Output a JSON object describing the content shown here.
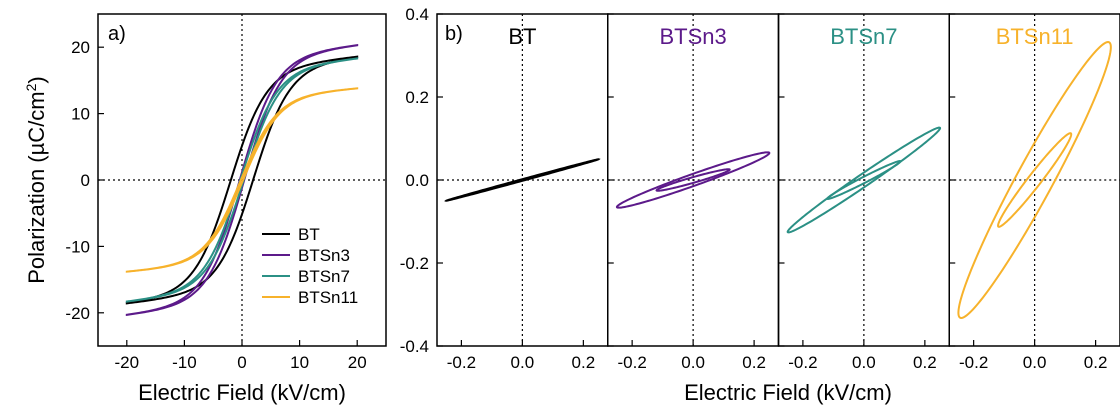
{
  "colors": {
    "BT": "#000000",
    "BTSn3": "#5c1a8a",
    "BTSn7": "#2b9085",
    "BTSn11": "#f7b22b"
  },
  "chart_data": [
    {
      "type": "line",
      "panel_label": "a)",
      "xlabel": "Electric Field (kV/cm)",
      "ylabel": "Polarization (µC/cm²)",
      "xlim": [
        -25,
        25
      ],
      "ylim": [
        -25,
        25
      ],
      "xticks": [
        -20,
        -10,
        0,
        10,
        20
      ],
      "yticks": [
        -20,
        -10,
        0,
        10,
        20
      ],
      "xtick_labels": [
        "-20",
        "-10",
        "0",
        "10",
        "20"
      ],
      "ytick_labels": [
        "-20",
        "-10",
        "0",
        "10",
        "20"
      ],
      "legend": {
        "position": "bottom-right",
        "entries": [
          "BT",
          "BTSn3",
          "BTSn7",
          "BTSn11"
        ]
      },
      "series": [
        {
          "name": "BT",
          "Emax": 20,
          "Psat": 18.5,
          "Ec": 2.0,
          "Pr": 7.0,
          "type": "hysteresis"
        },
        {
          "name": "BTSn3",
          "Emax": 20,
          "Psat": 20.3,
          "Ec": 0.4,
          "Pr": 12.0,
          "type": "hysteresis"
        },
        {
          "name": "BTSn7",
          "Emax": 20,
          "Psat": 18.3,
          "Ec": 0.3,
          "Pr": 8.0,
          "type": "hysteresis"
        },
        {
          "name": "BTSn11",
          "Emax": 20,
          "Psat": 13.8,
          "Ec": 0.2,
          "Pr": 4.0,
          "type": "hysteresis"
        }
      ]
    },
    {
      "type": "line",
      "panel_label": "b)",
      "xlabel": "Electric Field (kV/cm)",
      "ylim": [
        -0.4,
        0.4
      ],
      "yticks": [
        -0.4,
        -0.2,
        0.0,
        0.2,
        0.4
      ],
      "ytick_labels": [
        "-0.4",
        "-0.2",
        "0.0",
        "0.2",
        "0.4"
      ],
      "xlim": [
        -0.28,
        0.28
      ],
      "xticks": [
        -0.2,
        0.0,
        0.2
      ],
      "xtick_labels": [
        "-0.2",
        "0.0",
        "0.2"
      ],
      "subpanels": [
        {
          "title": "BT",
          "loops": [
            {
              "Emax": 0.25,
              "Pmax": 0.05,
              "Pr": 0.002
            }
          ]
        },
        {
          "title": "BTSn3",
          "loops": [
            {
              "Emax": 0.25,
              "Pmax": 0.065,
              "Pr": 0.015
            },
            {
              "Emax": 0.12,
              "Pmax": 0.025,
              "Pr": 0.007
            }
          ]
        },
        {
          "title": "BTSn7",
          "loops": [
            {
              "Emax": 0.25,
              "Pmax": 0.125,
              "Pr": 0.018
            },
            {
              "Emax": 0.12,
              "Pmax": 0.045,
              "Pr": 0.008
            }
          ]
        },
        {
          "title": "BTSn11",
          "loops": [
            {
              "Emax": 0.25,
              "Pmax": 0.32,
              "Pr": 0.09
            },
            {
              "Emax": 0.12,
              "Pmax": 0.11,
              "Pr": 0.025
            }
          ]
        }
      ]
    }
  ]
}
